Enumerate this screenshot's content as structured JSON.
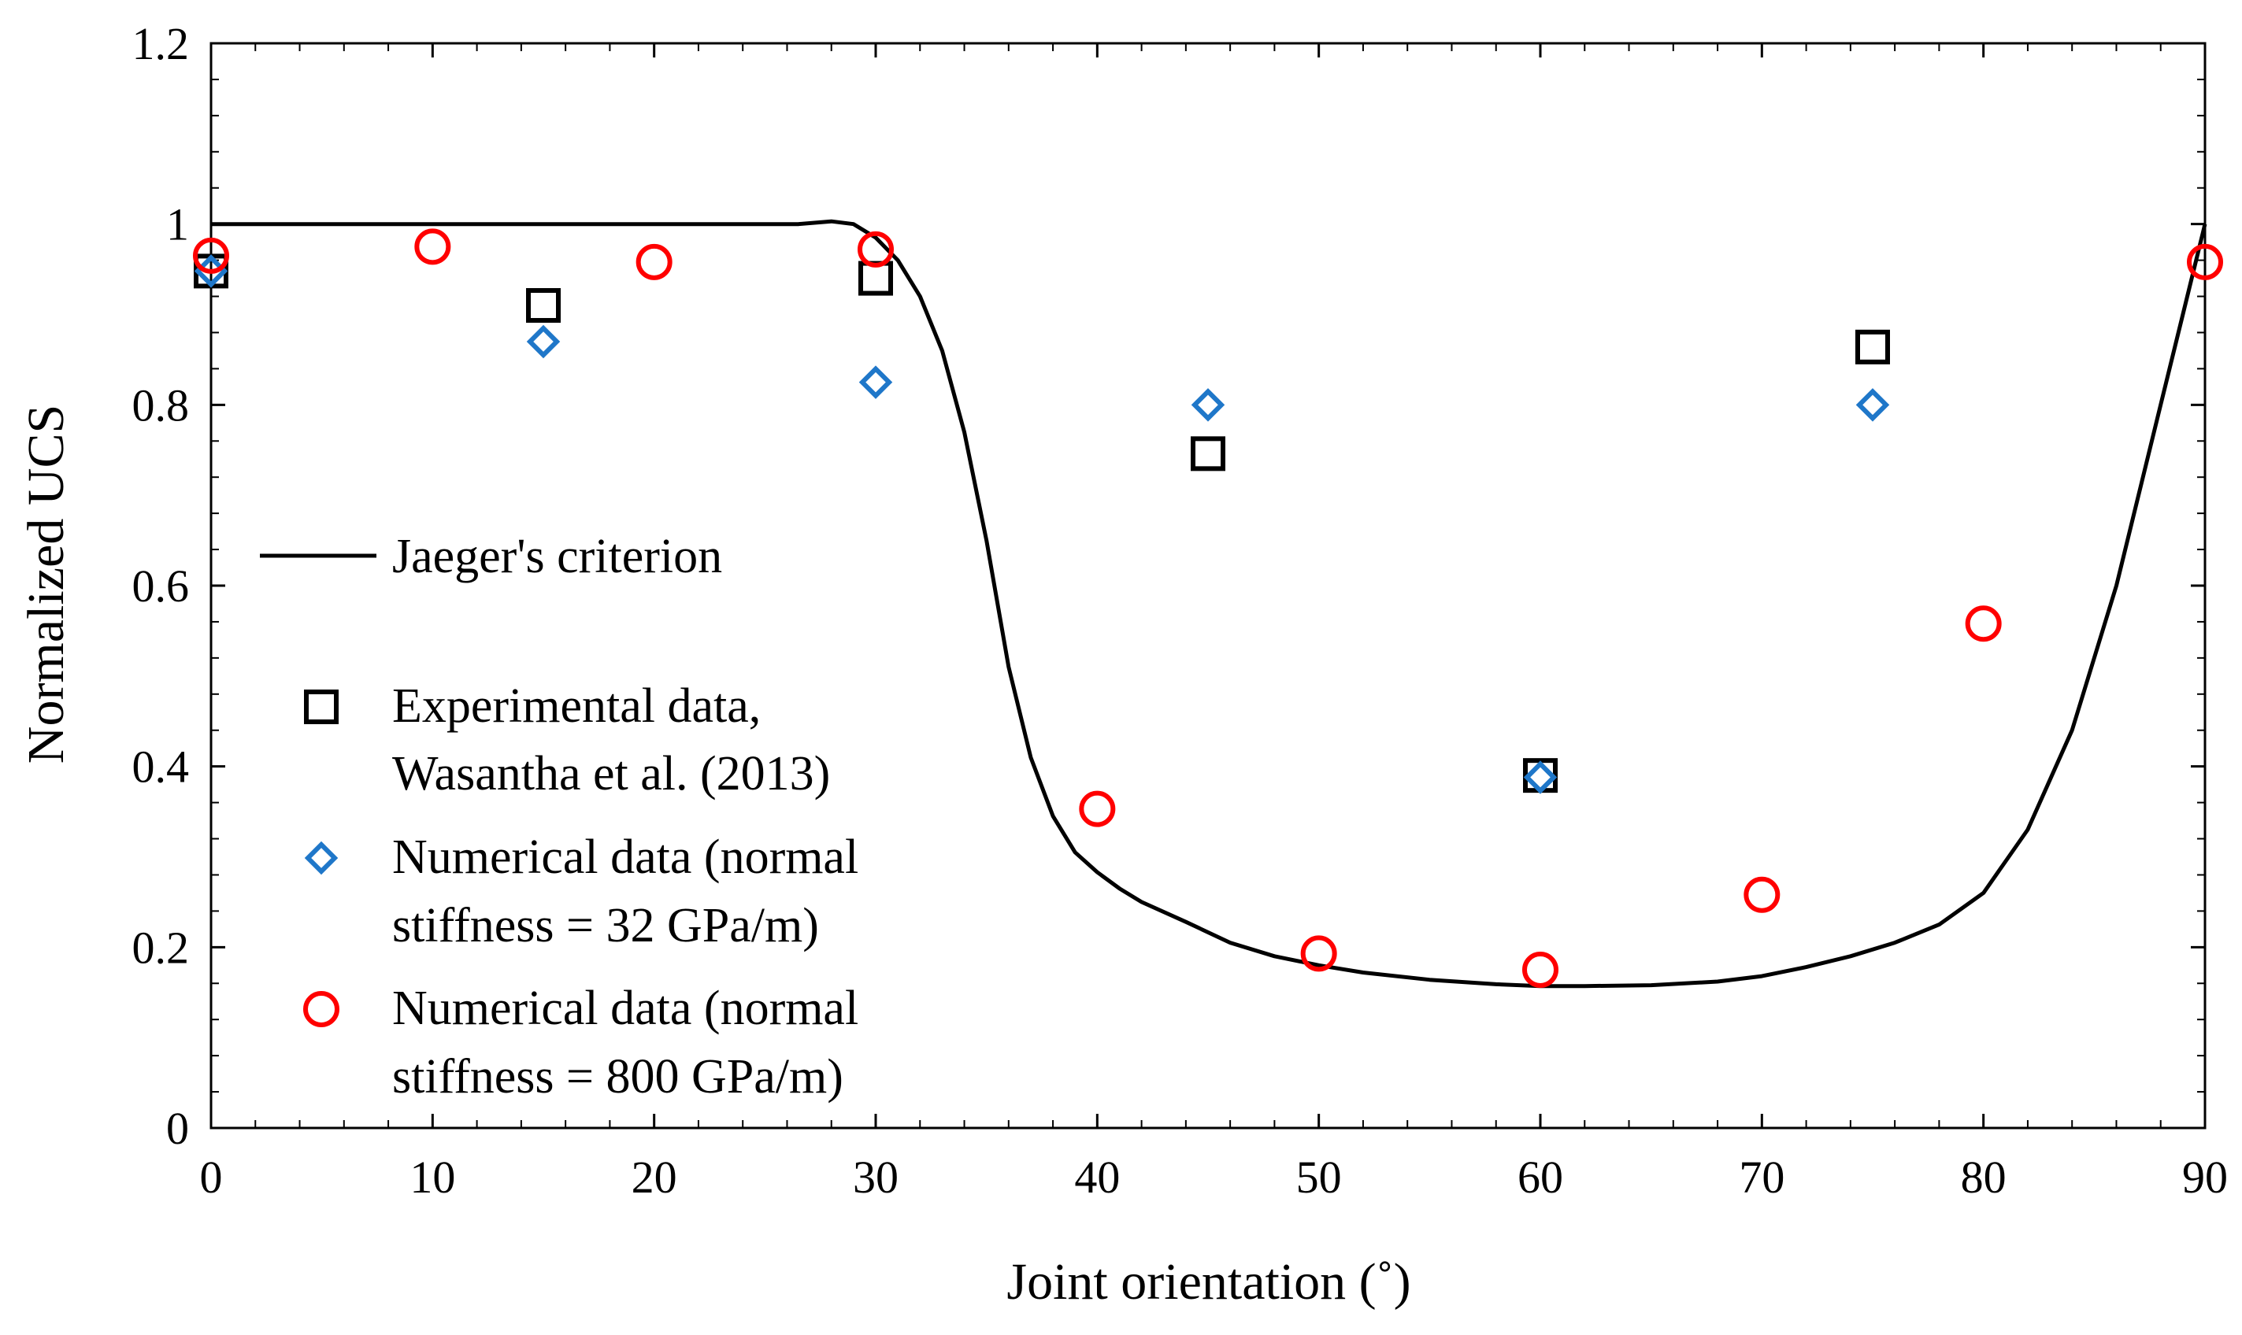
{
  "chart_data": {
    "type": "scatter",
    "title": "",
    "xlabel": "Joint orientation (˚)",
    "ylabel": "Normalized UCS",
    "xlim": [
      0,
      90
    ],
    "ylim": [
      0,
      1.2
    ],
    "xticks": [
      0,
      10,
      20,
      30,
      40,
      50,
      60,
      70,
      80,
      90
    ],
    "yticks": [
      0,
      0.2,
      0.4,
      0.6,
      0.8,
      1,
      1.2
    ],
    "xtick_labels": [
      "0",
      "10",
      "20",
      "30",
      "40",
      "50",
      "60",
      "70",
      "80",
      "90"
    ],
    "ytick_labels": [
      "0",
      "0.2",
      "0.4",
      "0.6",
      "0.8",
      "1",
      "1.2"
    ],
    "grid": false,
    "legend_position": "left-middle",
    "series": [
      {
        "name": "Jaeger's criterion",
        "kind": "line",
        "color": "#000000",
        "x": [
          0,
          25,
          26.5,
          28,
          29,
          30,
          31,
          32,
          33,
          34,
          35,
          36,
          37,
          38,
          39,
          40,
          41,
          42,
          44,
          46,
          48,
          50,
          52,
          55,
          58,
          60,
          62,
          65,
          68,
          70,
          72,
          74,
          76,
          78,
          80,
          82,
          84,
          86,
          88,
          89,
          90
        ],
        "y": [
          1.0,
          1.0,
          1.0,
          1.003,
          1.0,
          0.985,
          0.96,
          0.92,
          0.86,
          0.77,
          0.65,
          0.51,
          0.41,
          0.345,
          0.305,
          0.283,
          0.265,
          0.25,
          0.228,
          0.205,
          0.19,
          0.18,
          0.172,
          0.164,
          0.159,
          0.157,
          0.157,
          0.158,
          0.162,
          0.168,
          0.178,
          0.19,
          0.205,
          0.225,
          0.26,
          0.33,
          0.44,
          0.6,
          0.8,
          0.9,
          1.0
        ]
      },
      {
        "name": "Experimental data, Wasantha et al. (2013)",
        "legend_lines": [
          "Experimental data,",
          "Wasantha et al. (2013)"
        ],
        "kind": "marker",
        "marker": "square",
        "color": "#000000",
        "x": [
          0,
          15,
          30,
          45,
          60,
          75
        ],
        "y": [
          0.948,
          0.91,
          0.94,
          0.746,
          0.39,
          0.864
        ]
      },
      {
        "name": "Numerical data (normal stiffness = 32 GPa/m)",
        "legend_lines": [
          "Numerical data (normal",
          "stiffness = 32 GPa/m)"
        ],
        "kind": "marker",
        "marker": "diamond",
        "color": "#1f77c9",
        "x": [
          0,
          15,
          30,
          45,
          60,
          75
        ],
        "y": [
          0.948,
          0.87,
          0.825,
          0.8,
          0.388,
          0.8
        ]
      },
      {
        "name": "Numerical data (normal stiffness = 800 GPa/m)",
        "legend_lines": [
          "Numerical data (normal",
          "stiffness = 800 GPa/m)"
        ],
        "kind": "marker",
        "marker": "circle",
        "color": "#ff0000",
        "x": [
          0,
          10,
          20,
          30,
          40,
          50,
          60,
          70,
          80,
          90
        ],
        "y": [
          0.965,
          0.975,
          0.958,
          0.972,
          0.353,
          0.193,
          0.175,
          0.258,
          0.558,
          0.958
        ]
      }
    ]
  }
}
